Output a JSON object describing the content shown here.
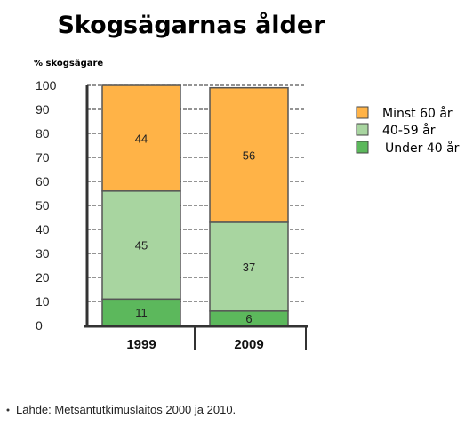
{
  "chart_data": {
    "type": "bar",
    "stacked": true,
    "title": "Skogsägarnas ålder",
    "ylabel": "% skogsägare",
    "xlabel": "",
    "categories": [
      "1999",
      "2009"
    ],
    "ylim": [
      0,
      100
    ],
    "yticks": [
      0,
      10,
      20,
      30,
      40,
      50,
      60,
      70,
      80,
      90,
      100
    ],
    "grid": "dashed horizontal",
    "legend_position": "right",
    "series": [
      {
        "name": "Under 40 år",
        "values": [
          11,
          6
        ],
        "color": "#5cb85c"
      },
      {
        "name": "40-59 år",
        "values": [
          45,
          37
        ],
        "color": "#a8d5a0"
      },
      {
        "name": "Minst 60 år",
        "values": [
          44,
          56
        ],
        "color": "#ffb347"
      }
    ],
    "legend_order": [
      "Minst 60 år",
      "40-59 år",
      "Under 40 år"
    ]
  },
  "source": "Lähde: Metsäntutkimuslaitos 2000 ja 2010."
}
